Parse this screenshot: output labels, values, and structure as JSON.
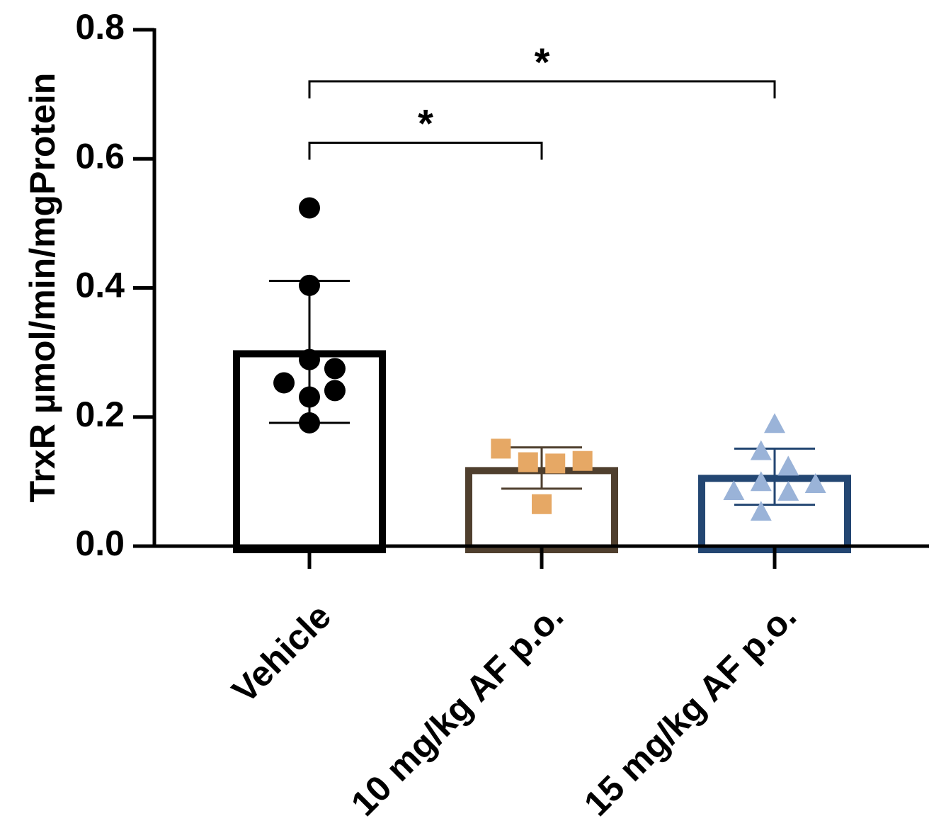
{
  "chart_data": {
    "type": "bar",
    "title": "",
    "xlabel": "",
    "ylabel": "TrxR µmol/min/mgProtein",
    "ylim": [
      0,
      0.8
    ],
    "yticks": [
      0.0,
      0.2,
      0.4,
      0.6,
      0.8
    ],
    "ytick_labels": [
      "0.0",
      "0.2",
      "0.4",
      "0.6",
      "0.8"
    ],
    "categories": [
      "Vehicle",
      "10 mg/kg AF p.o.",
      "15 mg/kg AF p.o."
    ],
    "values": [
      0.298,
      0.117,
      0.105
    ],
    "error": [
      {
        "low": 0.191,
        "high": 0.411
      },
      {
        "low": 0.089,
        "high": 0.153
      },
      {
        "low": 0.064,
        "high": 0.151
      }
    ],
    "bar_colors": [
      "#000000",
      "#4f3f2e",
      "#234672"
    ],
    "point_colors": [
      "#000000",
      "#e6a865",
      "#9ab3d8"
    ],
    "point_shapes": [
      "circle",
      "square",
      "triangle"
    ],
    "points": [
      [
        {
          "dx": 0,
          "y": 0.524
        },
        {
          "dx": 0,
          "y": 0.404
        },
        {
          "dx": 0,
          "y": 0.289
        },
        {
          "dx": 0.58,
          "y": 0.275
        },
        {
          "dx": -0.58,
          "y": 0.253
        },
        {
          "dx": 0.58,
          "y": 0.241
        },
        {
          "dx": 0,
          "y": 0.231
        },
        {
          "dx": 0,
          "y": 0.191
        }
      ],
      [
        {
          "dx": -0.93,
          "y": 0.151
        },
        {
          "dx": -0.31,
          "y": 0.13
        },
        {
          "dx": 0.31,
          "y": 0.128
        },
        {
          "dx": 0.93,
          "y": 0.132
        },
        {
          "dx": 0,
          "y": 0.065
        }
      ],
      [
        {
          "dx": 0,
          "y": 0.187
        },
        {
          "dx": -0.31,
          "y": 0.145
        },
        {
          "dx": 0.31,
          "y": 0.121
        },
        {
          "dx": -0.31,
          "y": 0.097
        },
        {
          "dx": 0.93,
          "y": 0.094
        },
        {
          "dx": -0.93,
          "y": 0.083
        },
        {
          "dx": 0.31,
          "y": 0.082
        },
        {
          "dx": -0.31,
          "y": 0.051
        }
      ]
    ],
    "significance": [
      {
        "from": 0,
        "to": 1,
        "y": 0.625,
        "label": "*"
      },
      {
        "from": 0,
        "to": 2,
        "y": 0.72,
        "label": "*"
      }
    ]
  }
}
